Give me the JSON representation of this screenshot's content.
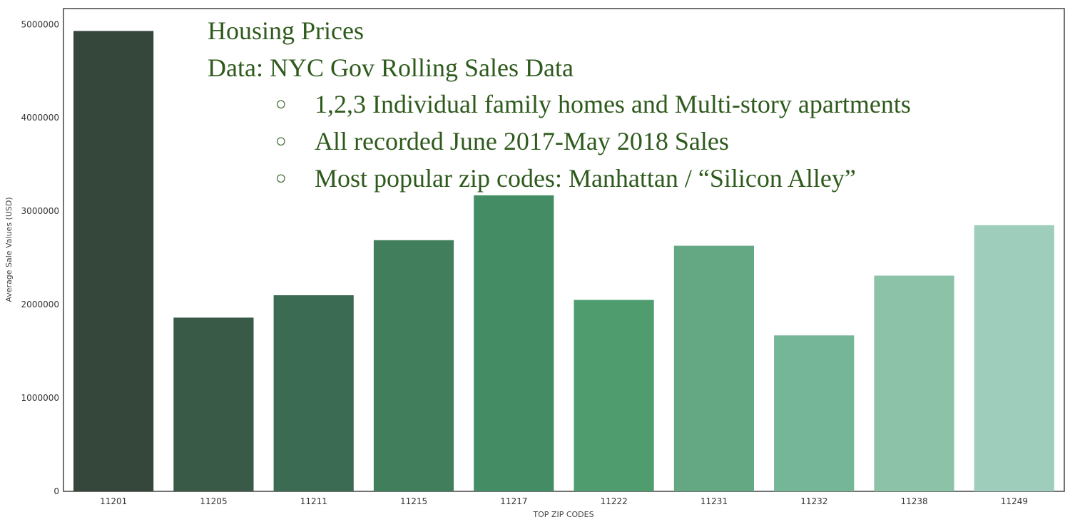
{
  "chart_data": {
    "type": "bar",
    "categories": [
      "11201",
      "11205",
      "11211",
      "11215",
      "11217",
      "11222",
      "11231",
      "11232",
      "11238",
      "11249"
    ],
    "values": [
      4930000,
      1860000,
      2100000,
      2690000,
      3170000,
      2050000,
      2630000,
      1670000,
      2310000,
      2850000
    ],
    "xlabel": "TOP ZIP CODES",
    "ylabel": "Average Sale Values (USD)",
    "ylim": [
      0,
      5170000
    ],
    "yticks": [
      0,
      1000000,
      2000000,
      3000000,
      4000000,
      5000000
    ],
    "ytick_labels": [
      "0",
      "1000000",
      "2000000",
      "3000000",
      "4000000",
      "5000000"
    ],
    "grid": false,
    "bar_colors": [
      "#35473b",
      "#3a5a48",
      "#3c6b53",
      "#407e5c",
      "#448d64",
      "#4f9d6f",
      "#63a883",
      "#76b698",
      "#8bc2a8",
      "#9ecdbb"
    ]
  },
  "overlay": {
    "line1": "Housing Prices",
    "line2": "Data: NYC Gov Rolling Sales Data",
    "bullet_symbol": "○",
    "bullets": [
      "1,2,3 Individual family homes and Multi-story apartments",
      "All recorded June 2017-May 2018 Sales",
      "Most popular zip codes: Manhattan / “Silicon Alley”"
    ],
    "text_color": "#2e5a1c"
  }
}
